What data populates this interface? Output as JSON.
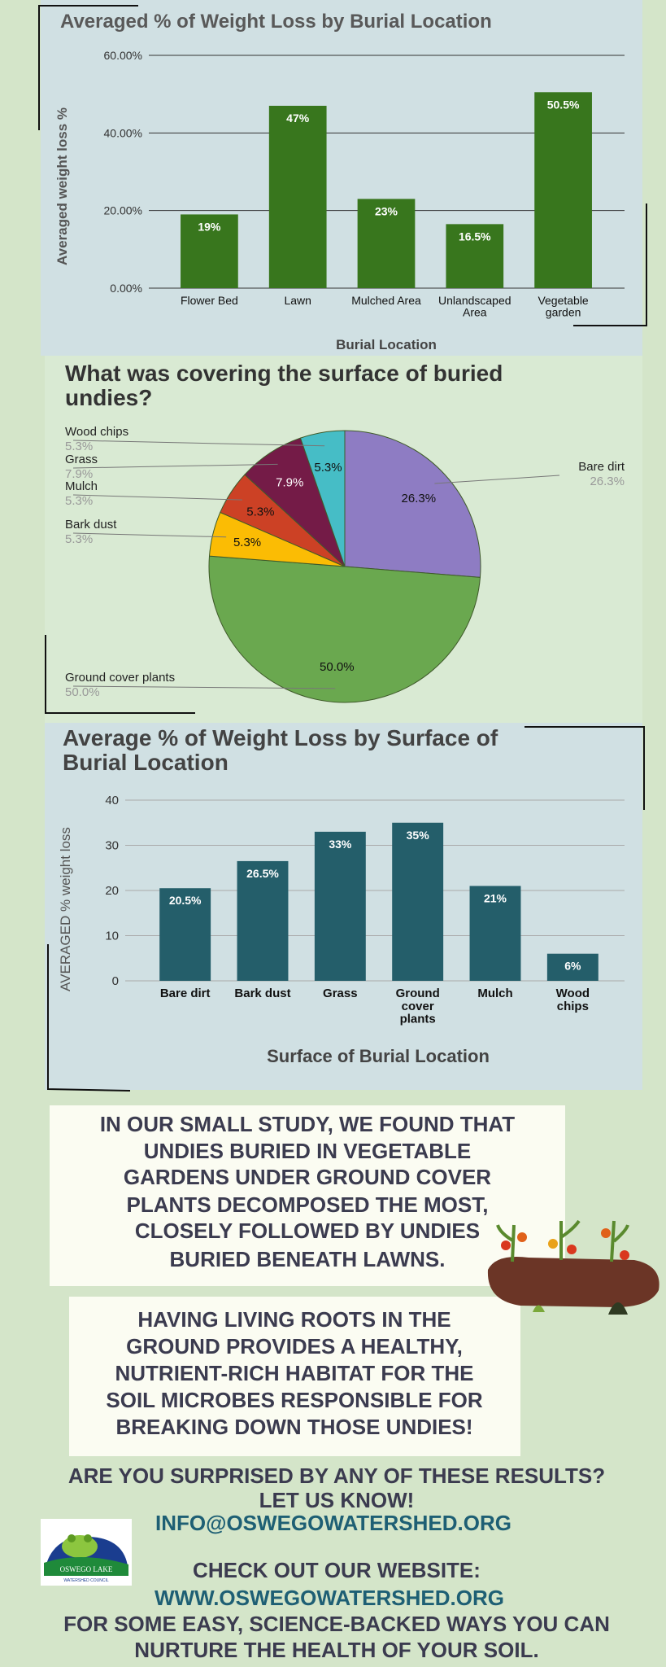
{
  "chart_data": [
    {
      "type": "bar",
      "title": "Averaged % of Weight Loss by Burial Location",
      "x_label": "Burial Location",
      "y_label": "Averaged weight loss %",
      "categories": [
        "Flower Bed",
        "Lawn",
        "Mulched Area",
        "Unlandscaped Area",
        "Vegetable garden"
      ],
      "values": [
        19,
        47,
        23,
        16.5,
        50.5
      ],
      "value_labels": [
        "19%",
        "47%",
        "23%",
        "16.5%",
        "50.5%"
      ],
      "color": "#38761d",
      "ylim": [
        0,
        60
      ],
      "yticks": [
        {
          "value": 0,
          "label": "0.00%"
        },
        {
          "value": 20,
          "label": "20.00%"
        },
        {
          "value": 40,
          "label": "40.00%"
        },
        {
          "value": 60,
          "label": "60.00%"
        }
      ],
      "grid": true,
      "grid_color": "#333333"
    },
    {
      "type": "pie",
      "title": "What was covering the surface of buried undies?",
      "categories": [
        "Bare dirt",
        "Ground cover plants",
        "Bark dust",
        "Mulch",
        "Grass",
        "Wood chips"
      ],
      "values": [
        26.3,
        50.0,
        5.3,
        5.3,
        7.9,
        5.3
      ],
      "value_labels": [
        "26.3%",
        "50.0%",
        "5.3%",
        "5.3%",
        "7.9%",
        "5.3%"
      ],
      "colors": [
        "#8e7cc3",
        "#6aa84f",
        "#fbbc04",
        "#cc4125",
        "#741b47",
        "#46bdc6"
      ]
    },
    {
      "type": "bar",
      "title": "Average % of Weight Loss by Surface of Burial Location",
      "x_label": "Surface of Burial Location",
      "y_label": "AVERAGED %  weight loss",
      "categories": [
        "Bare dirt",
        "Bark dust",
        "Grass",
        "Ground cover plants",
        "Mulch",
        "Wood chips"
      ],
      "values": [
        20.5,
        26.5,
        33,
        35,
        21,
        6
      ],
      "value_labels": [
        "20.5%",
        "26.5%",
        "33%",
        "35%",
        "21%",
        "6%"
      ],
      "color": "#245e6a",
      "ylim": [
        0,
        40
      ],
      "yticks": [
        0,
        10,
        20,
        30,
        40
      ],
      "grid": true,
      "grid_color": "#aaaaaa"
    }
  ],
  "text_blocks": [
    {
      "lines": [
        "IN OUR SMALL STUDY, WE FOUND THAT",
        "UNDIES BURIED IN VEGETABLE",
        "GARDENS UNDER GROUND COVER",
        "PLANTS DECOMPOSED THE MOST,",
        "CLOSELY FOLLOWED BY UNDIES",
        "BURIED BENEATH LAWNS."
      ]
    },
    {
      "lines": [
        "HAVING LIVING ROOTS IN THE",
        "GROUND PROVIDES A HEALTHY,",
        "NUTRIENT-RICH HABITAT FOR THE",
        "SOIL MICROBES RESPONSIBLE FOR",
        "BREAKING DOWN THOSE UNDIES!"
      ]
    }
  ],
  "footer": {
    "question_lines": [
      "ARE YOU SURPRISED BY ANY OF THESE RESULTS?",
      "LET US KNOW!"
    ],
    "email": "INFO@OSWEGOWATERSHED.ORG",
    "website_intro": "CHECK OUT OUR WEBSITE:",
    "website": "WWW.OSWEGOWATERSHED.ORG",
    "closing_lines": [
      "FOR SOME EASY, SCIENCE-BACKED WAYS YOU CAN",
      "NURTURE THE HEALTH OF YOUR SOIL."
    ]
  },
  "logo": {
    "name": "OSWEGO LAKE",
    "subtitle": "WATERSHED COUNCIL"
  }
}
